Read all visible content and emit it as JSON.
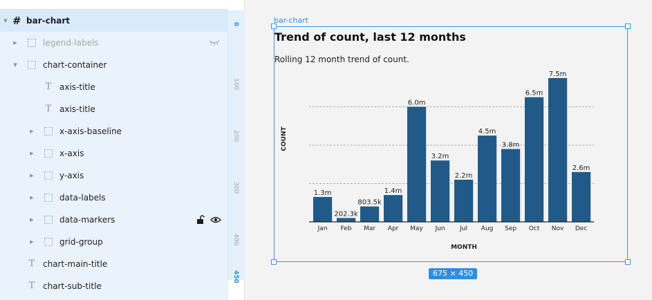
{
  "layers": [
    {
      "label": "bar-chart",
      "icon": "hash",
      "depth": 0,
      "expanded": true,
      "selected": true
    },
    {
      "label": "legend-labels",
      "icon": "frame",
      "depth": 1,
      "expanded": false,
      "hidden": true
    },
    {
      "label": "chart-container",
      "icon": "frame",
      "depth": 1,
      "expanded": true
    },
    {
      "label": "axis-title",
      "icon": "text",
      "depth": 2
    },
    {
      "label": "axis-title",
      "icon": "text",
      "depth": 2
    },
    {
      "label": "x-axis-baseline",
      "icon": "frame",
      "depth": 2,
      "expanded": false
    },
    {
      "label": "x-axis",
      "icon": "frame",
      "depth": 2,
      "expanded": false
    },
    {
      "label": "y-axis",
      "icon": "frame",
      "depth": 2,
      "expanded": false
    },
    {
      "label": "data-labels",
      "icon": "frame",
      "depth": 2,
      "expanded": false
    },
    {
      "label": "data-markers",
      "icon": "frame",
      "depth": 2,
      "expanded": false,
      "hover": true
    },
    {
      "label": "grid-group",
      "icon": "frame",
      "depth": 2,
      "expanded": false
    },
    {
      "label": "chart-main-title",
      "icon": "text",
      "depth": 1
    },
    {
      "label": "chart-sub-title",
      "icon": "text",
      "depth": 1
    }
  ],
  "ruler": {
    "ticks": [
      "0",
      "100",
      "200",
      "300",
      "400",
      "450"
    ]
  },
  "canvas": {
    "frame_label": "bar-chart",
    "size_badge": "675 × 450",
    "accent": "#2f8ee0"
  },
  "chart_data": {
    "type": "bar",
    "title": "Trend of count, last 12 months",
    "subtitle": "Rolling 12 month trend of count.",
    "xlabel": "MONTH",
    "ylabel": "COUNT",
    "categories": [
      "Jan",
      "Feb",
      "Mar",
      "Apr",
      "May",
      "Jun",
      "Jul",
      "Aug",
      "Sep",
      "Oct",
      "Nov",
      "Dec"
    ],
    "values": [
      1.3,
      0.2023,
      0.8035,
      1.4,
      6.0,
      3.2,
      2.2,
      4.5,
      3.8,
      6.5,
      7.5,
      2.6
    ],
    "value_labels": [
      "1.3m",
      "202.3k",
      "803.5k",
      "1.4m",
      "6.0m",
      "3.2m",
      "2.2m",
      "4.5m",
      "3.8m",
      "6.5m",
      "7.5m",
      "2.6m"
    ],
    "unit": "millions",
    "ylim": [
      0,
      8
    ],
    "gridlines": [
      2,
      4,
      6
    ],
    "grid": "dashed",
    "bar_color": "#215a87"
  }
}
